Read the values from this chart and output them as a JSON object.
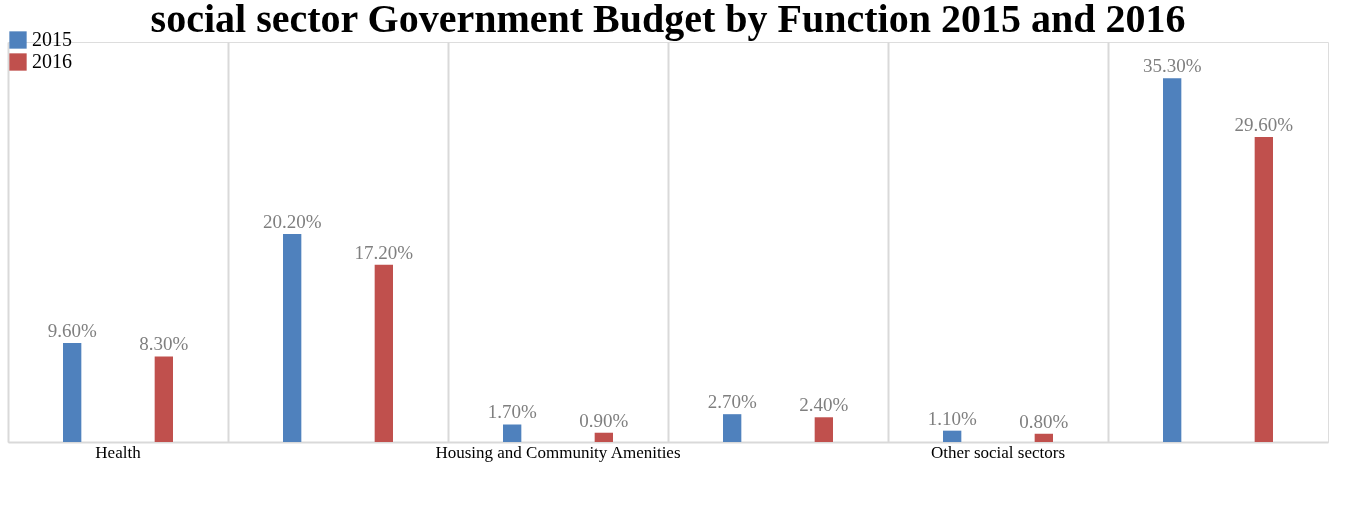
{
  "chart_data": {
    "type": "bar",
    "title": "social sector Government Budget by Function 2015 and 2016",
    "categories": [
      "Health",
      null,
      "Housing and Community Amenities",
      null,
      "Other social sectors",
      null
    ],
    "series": [
      {
        "name": "2015",
        "color": "#4f81bd",
        "values": [
          9.6,
          20.2,
          1.7,
          2.7,
          1.1,
          35.3
        ],
        "value_labels": [
          "9.60%",
          "20.20%",
          "1.70%",
          "2.70%",
          "1.10%",
          "35.30%"
        ]
      },
      {
        "name": "2016",
        "color": "#c0504d",
        "values": [
          8.3,
          17.2,
          0.9,
          2.4,
          0.8,
          29.6
        ],
        "value_labels": [
          "8.30%",
          "17.20%",
          "0.90%",
          "2.40%",
          "0.80%",
          "29.60%"
        ]
      }
    ],
    "grid": "x",
    "legend": "top"
  }
}
